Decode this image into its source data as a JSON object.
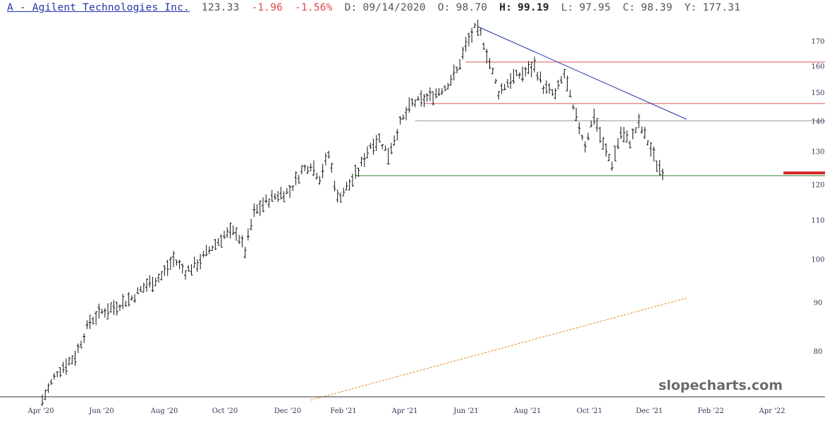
{
  "header": {
    "symbol": "A - Agilent Technologies Inc.",
    "last": "123.33",
    "change": "-1.96",
    "change_pct": "-1.56%",
    "date_label": "D:",
    "date": "09/14/2020",
    "open_label": "O:",
    "open": "98.70",
    "high_label": "H:",
    "high": "99.19",
    "low_label": "L:",
    "low": "97.95",
    "close_label": "C:",
    "close": "98.39",
    "y_label": "Y:",
    "y": "177.31"
  },
  "watermark": "slopecharts.com",
  "colors": {
    "bars": "#111111",
    "resistance": "#e05050",
    "support": "#2a8a2a",
    "neutral": "#999999",
    "downtrend": "#2233aa",
    "uptrend": "#e08a20",
    "last_price_marker": "#d42020"
  },
  "chart_data": {
    "type": "ohlc",
    "scale": "log",
    "y_ticks": [
      80,
      90,
      100,
      110,
      120,
      130,
      140,
      150,
      160,
      170
    ],
    "x_ticks": [
      "Apr '20",
      "Jun '20",
      "Aug '20",
      "Oct '20",
      "Dec '20",
      "Feb '21",
      "Apr '21",
      "Jun '21",
      "Aug '21",
      "Oct '21",
      "Dec '21",
      "Feb '22",
      "Apr '22"
    ],
    "price_path": [
      [
        0,
        71
      ],
      [
        5,
        76
      ],
      [
        11,
        79
      ],
      [
        16,
        86
      ],
      [
        20,
        88
      ],
      [
        24,
        89
      ],
      [
        30,
        91
      ],
      [
        35,
        94
      ],
      [
        40,
        96
      ],
      [
        44,
        100
      ],
      [
        48,
        97
      ],
      [
        52,
        99
      ],
      [
        57,
        103
      ],
      [
        61,
        106
      ],
      [
        65,
        107
      ],
      [
        68,
        102
      ],
      [
        71,
        112
      ],
      [
        75,
        115
      ],
      [
        79,
        117
      ],
      [
        83,
        118
      ],
      [
        87,
        124
      ],
      [
        90,
        126
      ],
      [
        93,
        122
      ],
      [
        96,
        129
      ],
      [
        99,
        116
      ],
      [
        103,
        120
      ],
      [
        106,
        124
      ],
      [
        110,
        132
      ],
      [
        113,
        134
      ],
      [
        116,
        129
      ],
      [
        120,
        139
      ],
      [
        124,
        146
      ],
      [
        127,
        147
      ],
      [
        131,
        149
      ],
      [
        135,
        152
      ],
      [
        139,
        158
      ],
      [
        142,
        168
      ],
      [
        145,
        175
      ],
      [
        147,
        173
      ],
      [
        150,
        161
      ],
      [
        153,
        150
      ],
      [
        157,
        155
      ],
      [
        161,
        157
      ],
      [
        165,
        160
      ],
      [
        168,
        152
      ],
      [
        172,
        149
      ],
      [
        175,
        157
      ],
      [
        178,
        144
      ],
      [
        182,
        132
      ],
      [
        185,
        142
      ],
      [
        188,
        132
      ],
      [
        191,
        126
      ],
      [
        194,
        136
      ],
      [
        197,
        133
      ],
      [
        200,
        139
      ],
      [
        203,
        133
      ],
      [
        206,
        126
      ],
      [
        208,
        124
      ]
    ],
    "levels": [
      {
        "name": "resistance-upper",
        "value": 161.5,
        "from": 142,
        "color": "#e05050"
      },
      {
        "name": "resistance-lower",
        "value": 146,
        "from": 128,
        "color": "#e05050"
      },
      {
        "name": "neutral-level",
        "value": 140,
        "from": 125,
        "color": "#999999"
      },
      {
        "name": "support",
        "value": 122.5,
        "from": 105,
        "color": "#2a8a2a"
      }
    ],
    "trendlines": [
      {
        "name": "downtrend",
        "from": [
          146,
          176
        ],
        "to": [
          216,
          140.5
        ],
        "color": "#2233aa",
        "dash": false
      },
      {
        "name": "uptrend",
        "from": [
          90,
          71
        ],
        "to": [
          216,
          91
        ],
        "color": "#e08a20",
        "dash": true
      }
    ],
    "last_price": 123.33
  }
}
